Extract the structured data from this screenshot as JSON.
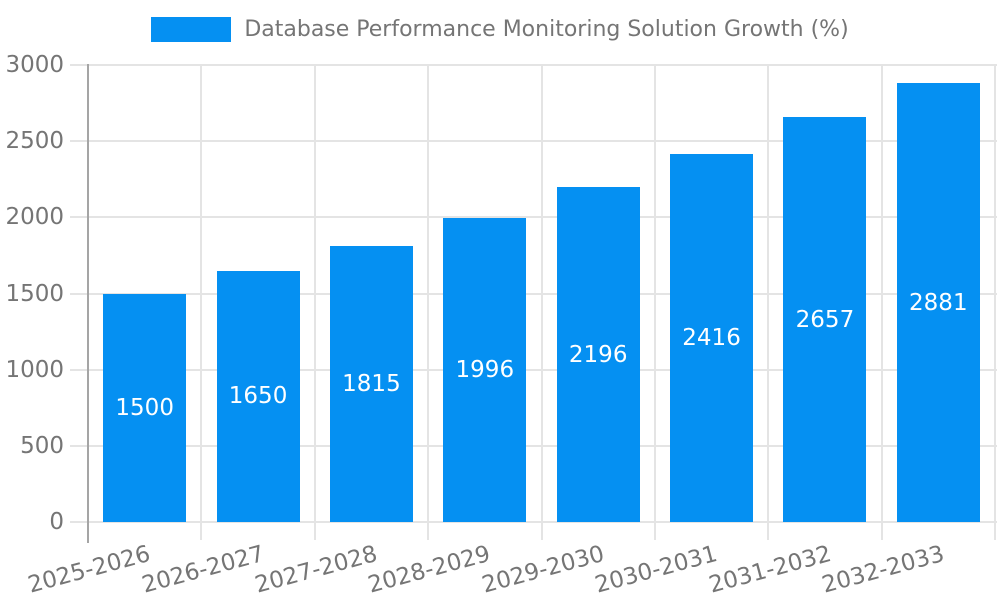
{
  "chart_data": {
    "type": "bar",
    "title": "Database Performance Monitoring Solution Growth (%)",
    "categories": [
      "2025-2026",
      "2026-2027",
      "2027-2028",
      "2028-2029",
      "2029-2030",
      "2030-2031",
      "2031-2032",
      "2032-2033"
    ],
    "values": [
      1500,
      1650,
      1815,
      1996,
      2196,
      2416,
      2657,
      2881
    ],
    "value_labels_position": "inside-center",
    "xlabel": "",
    "ylabel": "",
    "ylim": [
      0,
      3000
    ],
    "yticks": [
      0,
      500,
      1000,
      1500,
      2000,
      2500,
      3000
    ],
    "grid": "horizontal-and-vertical",
    "legend_position": "top-center",
    "x_tick_rotation_deg": 15,
    "colors": {
      "bar": "#0590F2",
      "grid_line": "#e4e4e4",
      "axis_line": "#a5a5a5",
      "tick_label": "#757575",
      "title": "#757575",
      "value_label": "#ffffff"
    }
  }
}
